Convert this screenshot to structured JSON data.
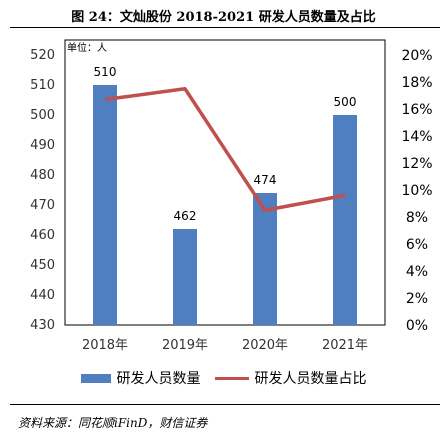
{
  "figure": {
    "title": "图 24：文灿股份 2018-2021 研发人员数量及占比",
    "source": "资料来源：同花顺iFinD，财信证券"
  },
  "chart_data": {
    "type": "bar",
    "unit_label": "单位：人",
    "categories": [
      "2018年",
      "2019年",
      "2020年",
      "2021年"
    ],
    "series": [
      {
        "name": "研发人员数量",
        "type": "bar",
        "axis": "left",
        "values": [
          510,
          462,
          474,
          500
        ]
      },
      {
        "name": "研发人员数量占比",
        "type": "line",
        "axis": "right",
        "values": [
          16.7,
          17.5,
          8.5,
          9.6
        ]
      }
    ],
    "y_left": {
      "min": 430,
      "max": 520,
      "step": 10,
      "ticks": [
        "430",
        "440",
        "450",
        "460",
        "470",
        "480",
        "490",
        "500",
        "510",
        "520"
      ]
    },
    "y_right": {
      "min": 0,
      "max": 20,
      "step": 2,
      "ticks": [
        "0%",
        "2%",
        "4%",
        "6%",
        "8%",
        "10%",
        "12%",
        "14%",
        "16%",
        "18%",
        "20%"
      ]
    },
    "data_labels": [
      "510",
      "462",
      "474",
      "500"
    ],
    "colors": {
      "bar": "#4f7fc1",
      "line": "#c0504d"
    },
    "legend_position": "bottom",
    "grid": false
  }
}
